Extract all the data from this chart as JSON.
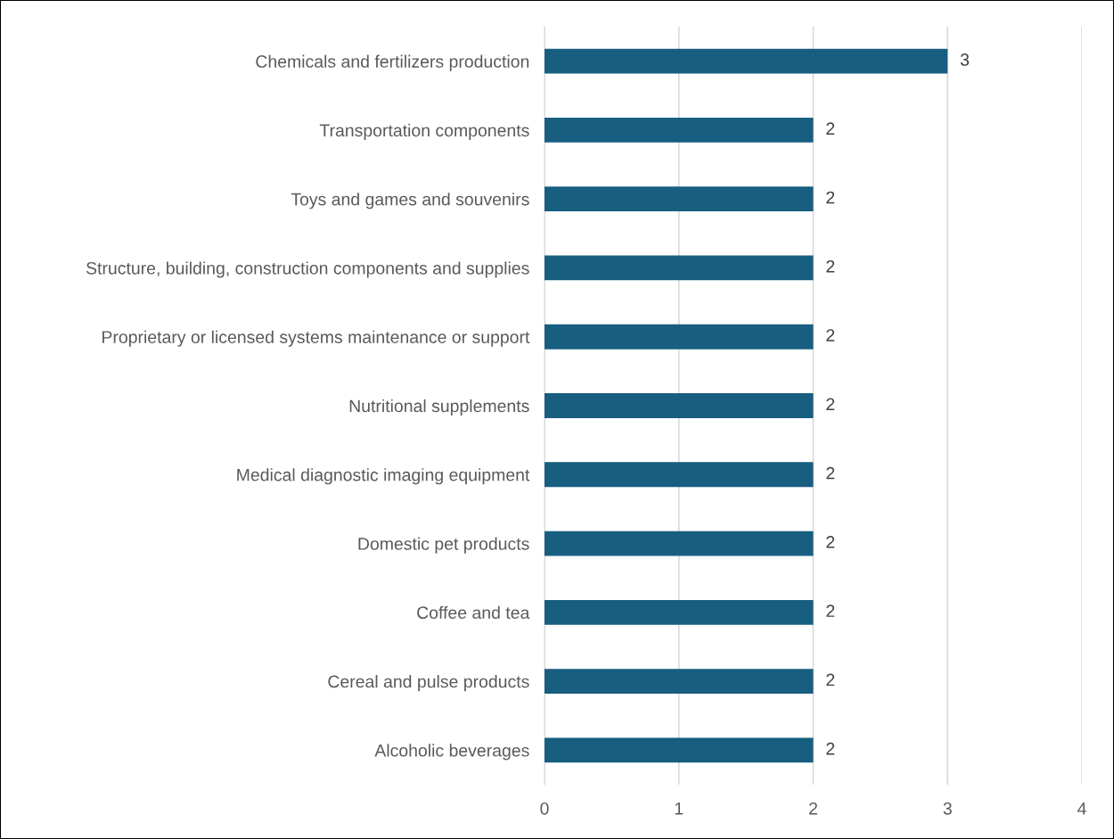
{
  "chart_data": {
    "type": "bar",
    "orientation": "horizontal",
    "categories": [
      "Chemicals and fertilizers production",
      "Transportation components",
      "Toys and games and souvenirs",
      "Structure, building, construction components and supplies",
      "Proprietary or licensed systems maintenance or support",
      "Nutritional supplements",
      "Medical diagnostic imaging equipment",
      "Domestic pet products",
      "Coffee and tea",
      "Cereal and pulse products",
      "Alcoholic beverages"
    ],
    "values": [
      3,
      2,
      2,
      2,
      2,
      2,
      2,
      2,
      2,
      2,
      2
    ],
    "color": "#175e80",
    "xlim": [
      0,
      4
    ],
    "xticks": [
      0,
      1,
      2,
      3,
      4
    ],
    "grid": "x",
    "data_labels": true
  }
}
